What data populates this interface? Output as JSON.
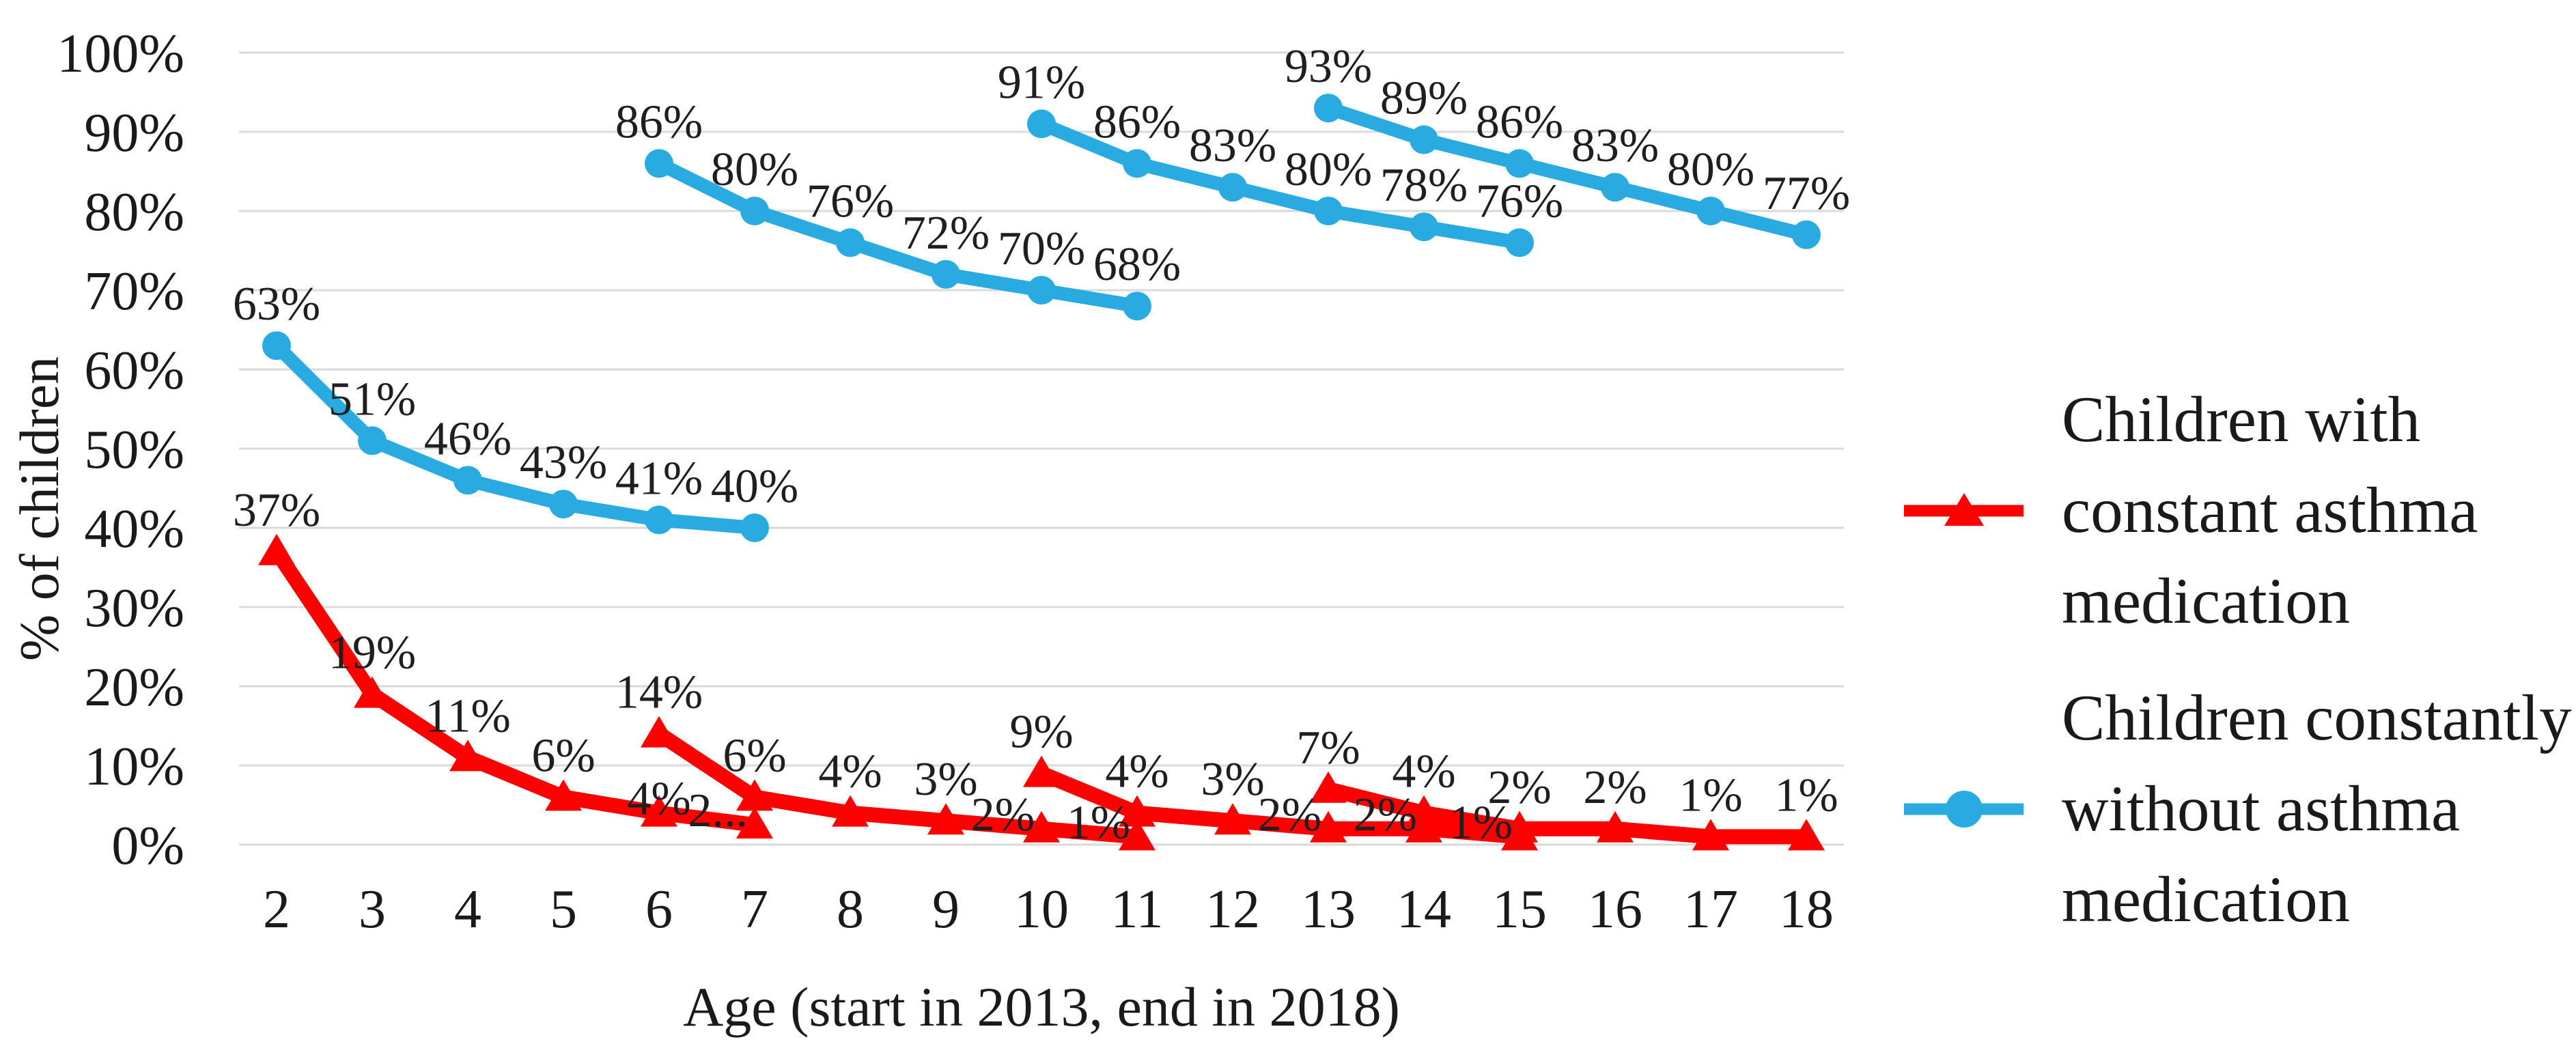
{
  "chart_data": {
    "type": "line",
    "title": "",
    "xlabel": "Age (start in 2013, end in 2018)",
    "ylabel": "% of children",
    "x_axis": {
      "ticks": [
        2,
        3,
        4,
        5,
        6,
        7,
        8,
        9,
        10,
        11,
        12,
        13,
        14,
        15,
        16,
        17,
        18
      ]
    },
    "y_axis": {
      "ticks": [
        {
          "label": "100%",
          "value": 100
        },
        {
          "label": "90%",
          "value": 90
        },
        {
          "label": "80%",
          "value": 80
        },
        {
          "label": "70%",
          "value": 70
        },
        {
          "label": "60%",
          "value": 60
        },
        {
          "label": "50%",
          "value": 50
        },
        {
          "label": "40%",
          "value": 40
        },
        {
          "label": "30%",
          "value": 30
        },
        {
          "label": "20%",
          "value": 20
        },
        {
          "label": "10%",
          "value": 10
        },
        {
          "label": "0%",
          "value": 0
        }
      ]
    },
    "ylim": [
      0,
      100
    ],
    "grid": "horizontal",
    "legend_position": "right",
    "colors": {
      "red_series": "#ff0000",
      "blue_series": "#29abe2",
      "gridline": "#d9d9d9",
      "text": "#1a1a1a"
    },
    "series": [
      {
        "name": "Children constantly without asthma medication",
        "color": "#29abe2",
        "marker": "circle",
        "segments": [
          {
            "points": [
              {
                "age": 2,
                "value": 63,
                "label": "63%"
              },
              {
                "age": 3,
                "value": 51,
                "label": "51%"
              },
              {
                "age": 4,
                "value": 46,
                "label": "46%"
              },
              {
                "age": 5,
                "value": 43,
                "label": "43%"
              },
              {
                "age": 6,
                "value": 41,
                "label": "41%"
              },
              {
                "age": 7,
                "value": 40,
                "label": "40%"
              }
            ]
          },
          {
            "points": [
              {
                "age": 6,
                "value": 86,
                "label": "86%"
              },
              {
                "age": 7,
                "value": 80,
                "label": "80%"
              },
              {
                "age": 8,
                "value": 76,
                "label": "76%"
              },
              {
                "age": 9,
                "value": 72,
                "label": "72%"
              },
              {
                "age": 10,
                "value": 70,
                "label": "70%"
              },
              {
                "age": 11,
                "value": 68,
                "label": "68%"
              }
            ]
          },
          {
            "points": [
              {
                "age": 10,
                "value": 91,
                "label": "91%"
              },
              {
                "age": 11,
                "value": 86,
                "label": "86%"
              },
              {
                "age": 12,
                "value": 83,
                "label": "83%"
              },
              {
                "age": 13,
                "value": 80,
                "label": "80%"
              },
              {
                "age": 14,
                "value": 78,
                "label": "78%"
              },
              {
                "age": 15,
                "value": 76,
                "label": "76%"
              }
            ]
          },
          {
            "points": [
              {
                "age": 13,
                "value": 93,
                "label": "93%"
              },
              {
                "age": 14,
                "value": 89,
                "label": "89%"
              },
              {
                "age": 15,
                "value": 86,
                "label": "86%"
              },
              {
                "age": 16,
                "value": 83,
                "label": "83%"
              },
              {
                "age": 17,
                "value": 80,
                "label": "80%"
              },
              {
                "age": 18,
                "value": 77,
                "label": "77%"
              }
            ]
          }
        ]
      },
      {
        "name": "Children with constant asthma medication",
        "color": "#ff0000",
        "marker": "triangle",
        "segments": [
          {
            "points": [
              {
                "age": 2,
                "value": 37,
                "label": "37%"
              },
              {
                "age": 3,
                "value": 19,
                "label": "19%"
              },
              {
                "age": 4,
                "value": 11,
                "label": "11%"
              },
              {
                "age": 5,
                "value": 6,
                "label": "6%"
              },
              {
                "age": 6,
                "value": 4,
                "label": "4%",
                "pos": "center"
              },
              {
                "age": 7,
                "value": 2.5,
                "label": "2...",
                "pos": "left"
              }
            ]
          },
          {
            "points": [
              {
                "age": 6,
                "value": 14,
                "label": "14%"
              },
              {
                "age": 7,
                "value": 6,
                "label": "6%"
              },
              {
                "age": 8,
                "value": 4,
                "label": "4%"
              },
              {
                "age": 9,
                "value": 3,
                "label": "3%"
              },
              {
                "age": 10,
                "value": 2,
                "label": "2%",
                "pos": "left"
              },
              {
                "age": 11,
                "value": 1,
                "label": "1%",
                "pos": "left"
              }
            ]
          },
          {
            "points": [
              {
                "age": 10,
                "value": 9,
                "label": "9%"
              },
              {
                "age": 11,
                "value": 4,
                "label": "4%"
              },
              {
                "age": 12,
                "value": 3,
                "label": "3%"
              },
              {
                "age": 13,
                "value": 2,
                "label": "2%",
                "pos": "left"
              },
              {
                "age": 14,
                "value": 2,
                "label": "2%",
                "pos": "left"
              },
              {
                "age": 15,
                "value": 1,
                "label": "1%",
                "pos": "left"
              }
            ]
          },
          {
            "points": [
              {
                "age": 13,
                "value": 7,
                "label": "7%"
              },
              {
                "age": 14,
                "value": 4,
                "label": "4%"
              },
              {
                "age": 15,
                "value": 2,
                "label": "2%"
              },
              {
                "age": 16,
                "value": 2,
                "label": "2%"
              },
              {
                "age": 17,
                "value": 1,
                "label": "1%"
              },
              {
                "age": 18,
                "value": 1,
                "label": "1%"
              }
            ]
          }
        ]
      }
    ]
  },
  "legend": {
    "items": [
      {
        "label": "Children with\nconstant asthma\nmedication",
        "color": "#ff0000",
        "marker": "triangle"
      },
      {
        "label": "Children constantly\nwithout asthma\nmedication",
        "color": "#29abe2",
        "marker": "circle"
      }
    ]
  }
}
